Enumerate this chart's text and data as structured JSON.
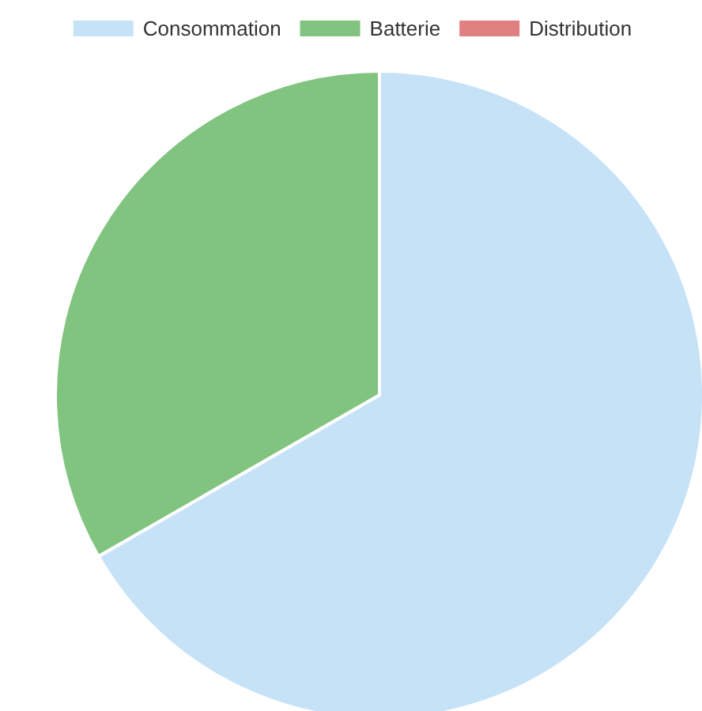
{
  "chart_data": {
    "type": "pie",
    "categories": [
      "Consommation",
      "Batterie",
      "Distribution"
    ],
    "values": [
      66.7,
      33.3,
      0
    ],
    "colors": [
      "#c6e2f7",
      "#80c47f",
      "#e08080"
    ],
    "legend": "top"
  }
}
